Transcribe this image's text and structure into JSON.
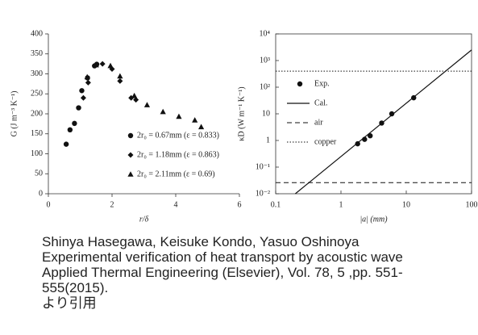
{
  "chart_data": [
    {
      "type": "scatter",
      "x_label": "r/δ",
      "y_label": "G (J m⁻³ K⁻¹)",
      "xlim": [
        0,
        6
      ],
      "xticks": [
        0,
        2,
        4,
        6
      ],
      "ylim": [
        0,
        400
      ],
      "yticks": [
        0,
        50,
        100,
        150,
        200,
        250,
        300,
        350,
        400
      ],
      "legend": "lower right",
      "frame": false,
      "series": [
        {
          "name": "2r₀ = 0.67mm (ε = 0.833)",
          "marker": "circle",
          "color": "#111",
          "x": [
            0.56,
            0.68,
            0.82,
            0.95,
            1.05,
            1.23,
            1.45,
            1.52
          ],
          "values": [
            124,
            160,
            176,
            215,
            258,
            290,
            320,
            324
          ]
        },
        {
          "name": "2r₀ = 1.18mm (ε = 0.863)",
          "marker": "diamond",
          "color": "#111",
          "x": [
            1.1,
            1.25,
            1.7,
            2.0,
            2.25,
            2.6,
            2.75
          ],
          "values": [
            240,
            278,
            325,
            312,
            282,
            240,
            235
          ]
        },
        {
          "name": "2r₀ = 2.11mm (ε = 0.69)",
          "marker": "triangle",
          "color": "#111",
          "x": [
            1.22,
            1.5,
            1.95,
            2.25,
            2.7,
            3.1,
            3.6,
            4.1,
            4.6,
            4.8
          ],
          "values": [
            292,
            322,
            320,
            294,
            245,
            222,
            205,
            193,
            184,
            167
          ]
        }
      ]
    },
    {
      "type": "line",
      "x_label": "|a| (mm)",
      "y_label": "κD (W m⁻¹ K⁻¹)",
      "xscale": "log",
      "yscale": "log",
      "xlim": [
        0.1,
        100
      ],
      "xticks": [
        0.1,
        1,
        10,
        100
      ],
      "ylim": [
        0.01,
        10000
      ],
      "yticks": [
        {
          "value": 0.01,
          "label": "10⁻²"
        },
        {
          "value": 0.1,
          "label": "10⁻¹"
        },
        1,
        10,
        {
          "value": 100,
          "label": "10²"
        },
        {
          "value": 1000,
          "label": "10³"
        },
        {
          "value": 10000,
          "label": "10⁴"
        }
      ],
      "legend": "upper left",
      "frame": true,
      "series": [
        {
          "name": "Exp.",
          "marker": "circle",
          "color": "#111",
          "x": [
            1.8,
            2.3,
            2.8,
            4.2,
            6,
            13
          ],
          "values": [
            0.75,
            1.1,
            1.5,
            4.5,
            10,
            40
          ]
        },
        {
          "name": "Cal.",
          "line": "solid",
          "color": "#111",
          "x": [
            0.2,
            100
          ],
          "values": [
            0.01,
            2500
          ]
        },
        {
          "name": "air",
          "line": "dashed",
          "color": "#111",
          "x": [
            0.1,
            100
          ],
          "values": [
            0.026,
            0.026
          ]
        },
        {
          "name": "copper",
          "line": "dotted",
          "color": "#111",
          "x": [
            0.1,
            100
          ],
          "values": [
            400,
            400
          ]
        }
      ]
    }
  ],
  "caption": [
    "Shinya Hasegawa, Keisuke Kondo, Yasuo Oshinoya",
    "Experimental verification of heat transport by acoustic wave",
    "Applied Thermal Engineering (Elsevier), Vol. 78, 5 ,pp. 551-",
    "555(2015).",
    "より引用"
  ]
}
